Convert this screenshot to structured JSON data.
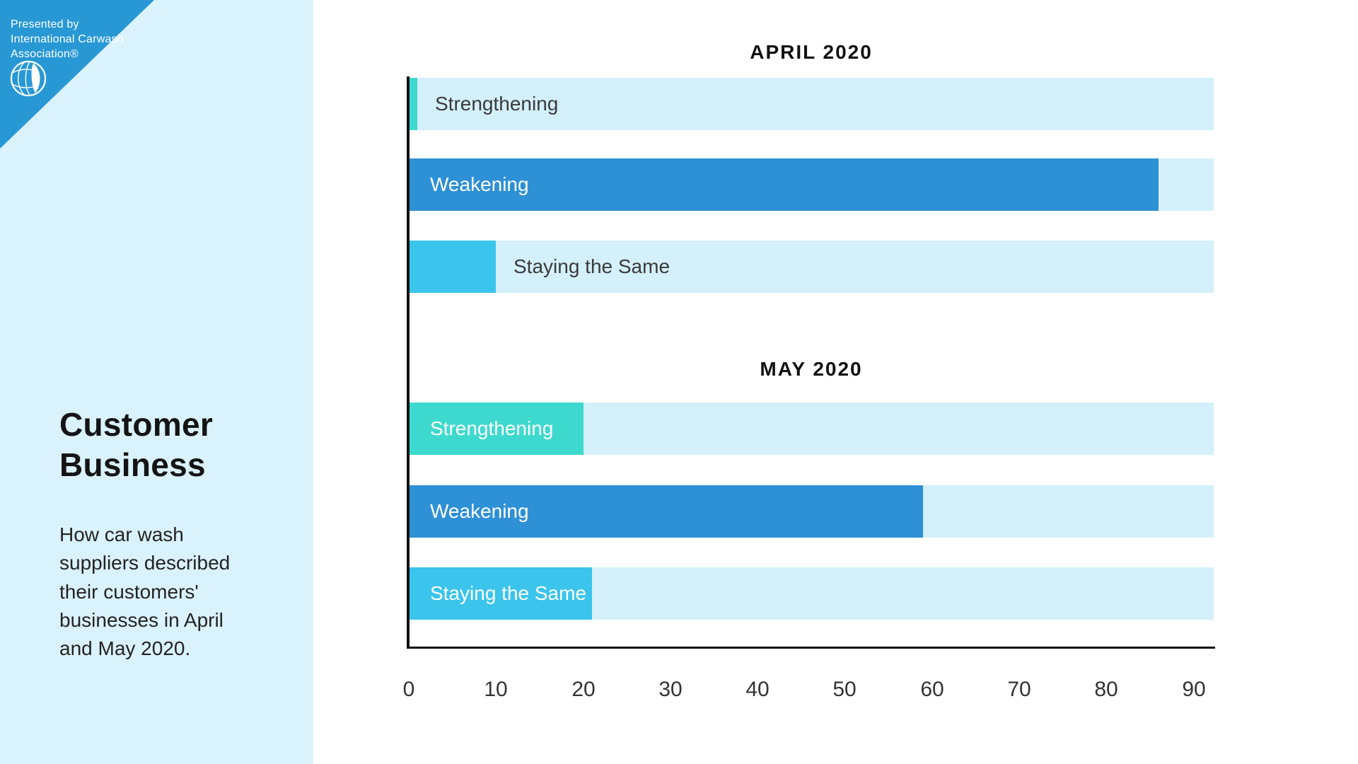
{
  "brand": {
    "lines": [
      "Presented by",
      "International Carwash",
      "Association®"
    ],
    "logo_icon": "globe-icon"
  },
  "sidebar": {
    "title": "Customer Business",
    "description": "How car wash suppliers described their customers' businesses in April and May 2020."
  },
  "colors": {
    "corner_banner": "#2898D5",
    "sidebar_bg": "#DAF2FB",
    "track": "#D4F0FA",
    "strengthening": "#3ED9CE",
    "weakening": "#2E90D5",
    "staying_the_same": "#3BC4EC"
  },
  "axis": {
    "ticks": [
      0,
      10,
      20,
      30,
      40,
      50,
      60,
      70,
      80,
      90
    ]
  },
  "chart_data": [
    {
      "type": "bar",
      "orientation": "horizontal",
      "title": "APRIL 2020",
      "categories": [
        "Strengthening",
        "Weakening",
        "Staying the Same"
      ],
      "values": [
        1,
        86,
        10
      ],
      "series_colors": [
        "#3ED9CE",
        "#2E90D5",
        "#3BC4EC"
      ],
      "xlim": [
        0,
        92
      ],
      "grid": false,
      "legend": false
    },
    {
      "type": "bar",
      "orientation": "horizontal",
      "title": "MAY 2020",
      "categories": [
        "Strengthening",
        "Weakening",
        "Staying the Same"
      ],
      "values": [
        20,
        59,
        21
      ],
      "series_colors": [
        "#3ED9CE",
        "#2E90D5",
        "#3BC4EC"
      ],
      "xlim": [
        0,
        92
      ],
      "grid": false,
      "legend": false
    }
  ]
}
